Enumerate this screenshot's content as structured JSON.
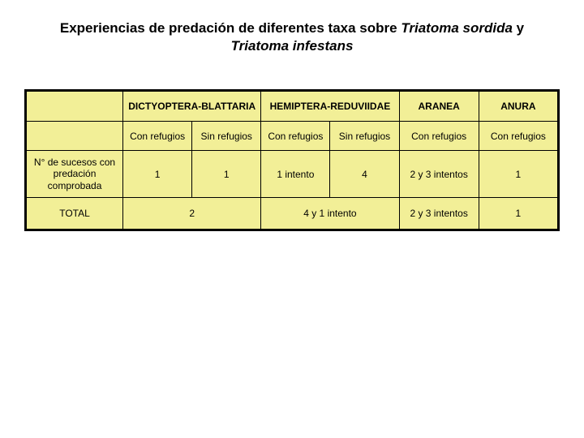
{
  "title_plain1": "Experiencias de predación de diferentes taxa sobre ",
  "title_italic1": "Triatoma sordida",
  "title_plain2": " y ",
  "title_italic2": "Triatoma infestans",
  "table": {
    "bg_color": "#f2ef97",
    "border_color": "#000000",
    "header_top": {
      "blank": "",
      "c1": "DICTYOPTERA-BLATTARIA",
      "c2": "HEMIPTERA-REDUVIIDAE",
      "c3": "ARANEA",
      "c4": "ANURA"
    },
    "header_sub": {
      "blank": "",
      "a": "Con refugios",
      "b": "Sin refugios",
      "c": "Con refugios",
      "d": "Sin refugios",
      "e": "Con refugios",
      "f": "Con refugios"
    },
    "row_data": {
      "label": "N° de sucesos con predación comprobada",
      "a": "1",
      "b": "1",
      "c": "1 intento",
      "d": "4",
      "e": "2 y 3 intentos",
      "f": "1"
    },
    "row_total": {
      "label": "TOTAL",
      "ab": "2",
      "cd": "4 y 1 intento",
      "e": "2 y 3 intentos",
      "f": "1"
    }
  }
}
